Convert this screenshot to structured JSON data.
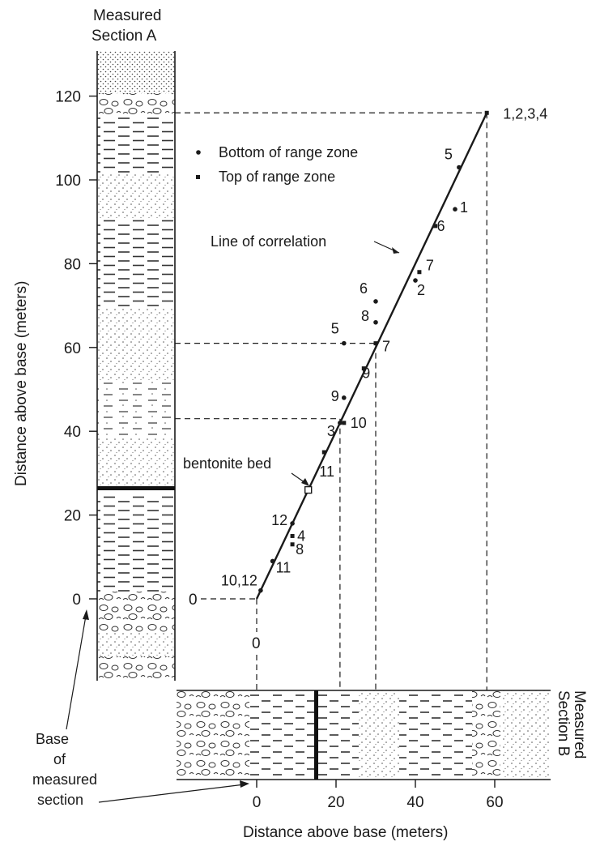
{
  "section_a": {
    "title_line1": "Measured",
    "title_line2": "Section A"
  },
  "section_b": {
    "title_line1": "Measured",
    "title_line2": "Section B"
  },
  "y_axis": {
    "title": "Distance above base  (meters)",
    "ticks": [
      "0",
      "20",
      "40",
      "60",
      "80",
      "100",
      "120"
    ]
  },
  "x_axis": {
    "title": "Distance above base (meters)",
    "ticks": [
      "0",
      "20",
      "40",
      "60"
    ]
  },
  "legend": {
    "bottom_label": "Bottom of range zone",
    "top_label": "Top of range zone"
  },
  "annotations": {
    "line_of_correlation": "Line of correlation",
    "bentonite_bed": "bentonite bed",
    "base_line1": "Base",
    "base_line2": "of",
    "base_line3": "measured",
    "base_line4": "section",
    "origin_left": "0",
    "origin_bottom": "0"
  },
  "correlation_line": {
    "from": [
      0,
      0
    ],
    "to": [
      58,
      116
    ]
  },
  "bentonite_point": {
    "x": 13,
    "y": 26
  },
  "dashed_refs": [
    {
      "x": 58,
      "y": 116
    },
    {
      "x": 30,
      "y": 61
    },
    {
      "x": 21,
      "y": 43
    }
  ],
  "points": [
    {
      "label": "1,2,3,4",
      "x": 58,
      "y": 116,
      "type": "top"
    },
    {
      "label": "5",
      "x": 51,
      "y": 103,
      "type": "bottom"
    },
    {
      "label": "1",
      "x": 50,
      "y": 93,
      "type": "bottom"
    },
    {
      "label": "6",
      "x": 45,
      "y": 89,
      "type": "top"
    },
    {
      "label": "7",
      "x": 41,
      "y": 78,
      "type": "top"
    },
    {
      "label": "2",
      "x": 40,
      "y": 76,
      "type": "bottom"
    },
    {
      "label": "6",
      "x": 30,
      "y": 71,
      "type": "bottom"
    },
    {
      "label": "8",
      "x": 30,
      "y": 66,
      "type": "bottom"
    },
    {
      "label": "5",
      "x": 22,
      "y": 61,
      "type": "bottom"
    },
    {
      "label": "7",
      "x": 30,
      "y": 61,
      "type": "top"
    },
    {
      "label": "9",
      "x": 27,
      "y": 55,
      "type": "top"
    },
    {
      "label": "9",
      "x": 22,
      "y": 48,
      "type": "bottom"
    },
    {
      "label": "10",
      "x": 22,
      "y": 42,
      "type": "top"
    },
    {
      "label": "3",
      "x": 21,
      "y": 42,
      "type": "bottom"
    },
    {
      "label": "11",
      "x": 17,
      "y": 35,
      "type": "top"
    },
    {
      "label": "12",
      "x": 9,
      "y": 18,
      "type": "bottom"
    },
    {
      "label": "4",
      "x": 9,
      "y": 15,
      "type": "top"
    },
    {
      "label": "8",
      "x": 9,
      "y": 13,
      "type": "top"
    },
    {
      "label": "11",
      "x": 4,
      "y": 9,
      "type": "bottom"
    },
    {
      "label": "10,12",
      "x": 1,
      "y": 2,
      "type": "bottom"
    }
  ],
  "colors": {
    "ink": "#1a1a1a",
    "background": "#ffffff"
  }
}
